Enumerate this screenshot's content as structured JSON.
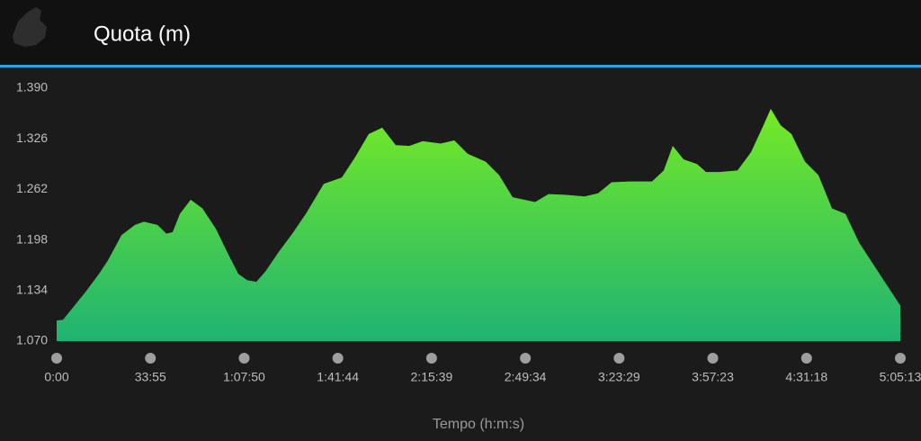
{
  "header": {
    "title": "Quota (m)"
  },
  "chart_data": {
    "type": "area",
    "x_label": "Tempo (h:m:s)",
    "x": [
      0,
      137,
      332,
      625,
      918,
      1113,
      1406,
      1699,
      1894,
      2187,
      2382,
      2518,
      2675,
      2909,
      3163,
      3456,
      3749,
      3944,
      4139,
      4334,
      4530,
      4822,
      5115,
      5408,
      5799,
      6189,
      6482,
      6775,
      7067,
      7360,
      7653,
      7946,
      8336,
      8631,
      8922,
      9312,
      9605,
      9898,
      10386,
      10679,
      11070,
      11460,
      11753,
      12046,
      12436,
      12924,
      13178,
      13373,
      13607,
      13900,
      14096,
      14389,
      14779,
      15072,
      15326,
      15501,
      15716,
      15950,
      16243,
      16536,
      16829,
      17122,
      17415,
      17806,
      18313
    ],
    "values": [
      1096,
      1097,
      1111,
      1132,
      1155,
      1172,
      1204,
      1217,
      1221,
      1217,
      1206,
      1208,
      1231,
      1249,
      1238,
      1212,
      1177,
      1155,
      1147,
      1145,
      1158,
      1183,
      1206,
      1231,
      1269,
      1277,
      1303,
      1332,
      1340,
      1318,
      1317,
      1323,
      1320,
      1324,
      1307,
      1297,
      1280,
      1252,
      1246,
      1256,
      1255,
      1253,
      1257,
      1271,
      1272,
      1272,
      1286,
      1317,
      1300,
      1294,
      1284,
      1284,
      1286,
      1309,
      1341,
      1364,
      1343,
      1332,
      1297,
      1280,
      1238,
      1231,
      1195,
      1160,
      1115
    ],
    "xlim": [
      0,
      18313
    ],
    "ylim": [
      1070,
      1390
    ],
    "xticks": [
      {
        "value": 0,
        "label": "0:00"
      },
      {
        "value": 2035,
        "label": "33:55"
      },
      {
        "value": 4070,
        "label": "1:07:50"
      },
      {
        "value": 6104,
        "label": "1:41:44"
      },
      {
        "value": 8139,
        "label": "2:15:39"
      },
      {
        "value": 10174,
        "label": "2:49:34"
      },
      {
        "value": 12209,
        "label": "3:23:29"
      },
      {
        "value": 14243,
        "label": "3:57:23"
      },
      {
        "value": 16278,
        "label": "4:31:18"
      },
      {
        "value": 18313,
        "label": "5:05:13"
      }
    ],
    "yticks": [
      {
        "value": 1070,
        "label": "1.070"
      },
      {
        "value": 1134,
        "label": "1.134"
      },
      {
        "value": 1198,
        "label": "1.198"
      },
      {
        "value": 1262,
        "label": "1.262"
      },
      {
        "value": 1326,
        "label": "1.326"
      },
      {
        "value": 1390,
        "label": "1.390"
      }
    ]
  }
}
